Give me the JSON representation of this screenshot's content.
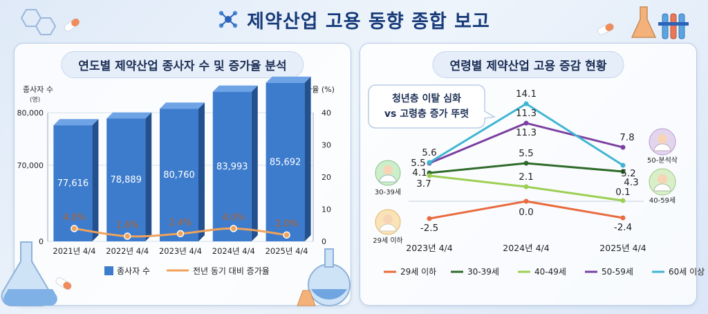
{
  "title": "제약산업 고용 동향 종합 보고",
  "left": {
    "panel_title": "연도별 제약산업 종사자 수 및 증가율 분석",
    "y_left_label": "종사자 수",
    "y_left_unit": "(명)",
    "y_right_label": "증가율 (%)",
    "legend_bar": "종사자 수",
    "legend_line": "전년 동기 대비 증가율"
  },
  "right": {
    "panel_title": "연령별 제약산업 고용 증감 현황",
    "callout_line1": "청년층 이탈 심화",
    "callout_line2": "vs 고령층 증가 뚜렷",
    "badges": [
      "30-39세",
      "29세 이하",
      "50-분석삭",
      "40-59세"
    ]
  },
  "chart_data": [
    {
      "type": "bar",
      "title": "연도별 제약산업 종사자 수 및 증가율 분석",
      "categories": [
        "2021년 4/4",
        "2022년 4/4",
        "2023년 4/4",
        "2024년 4/4",
        "2025년 4/4"
      ],
      "series": [
        {
          "name": "종사자 수",
          "type": "bar",
          "axis": "left",
          "values": [
            77616,
            78889,
            80760,
            83993,
            85692
          ],
          "labels": [
            "77,616",
            "78,889",
            "80,760",
            "83,993",
            "85,692"
          ],
          "color": "#3d7ccc"
        },
        {
          "name": "전년 동기 대비 증가율",
          "type": "line",
          "axis": "right",
          "values": [
            4.0,
            1.6,
            2.4,
            4.0,
            2.0
          ],
          "labels": [
            "4.0%",
            "1.6%",
            "2.4%",
            "4.0%",
            "2.0%"
          ],
          "color": "#f0a25a"
        }
      ],
      "y_left_ticks": [
        "0",
        "70,000",
        "80,000"
      ],
      "y_right_ticks": [
        "0",
        "10",
        "20",
        "30",
        "40"
      ],
      "y_right_lim": [
        0,
        40
      ]
    },
    {
      "type": "line",
      "title": "연령별 제약산업 고용 증감 현황",
      "x": [
        "2023년 4/4",
        "2024년 4/4",
        "2025년 4/4"
      ],
      "ylim": [
        -4,
        15
      ],
      "series": [
        {
          "name": "29세 이하",
          "values": [
            -2.5,
            0.0,
            -2.4
          ],
          "labels": [
            "-2.5",
            "0.0",
            "-2.4"
          ],
          "color": "#e86a3e"
        },
        {
          "name": "30-39세",
          "values": [
            4.1,
            5.5,
            4.3
          ],
          "labels": [
            "4.1",
            "5.5",
            "4.3"
          ],
          "color": "#2f6b2a"
        },
        {
          "name": "40-49세",
          "values": [
            3.7,
            2.1,
            0.1
          ],
          "labels": [
            "3.7",
            "2.1",
            "0.1"
          ],
          "color": "#9ccf53"
        },
        {
          "name": "50-59세",
          "values": [
            5.5,
            11.3,
            7.8
          ],
          "labels": [
            "5.5",
            "11.3",
            "7.8"
          ],
          "color": "#7b3fa0"
        },
        {
          "name": "60세 이상",
          "values": [
            5.6,
            14.1,
            5.2
          ],
          "labels": [
            "5.6",
            "14.1",
            "5.2"
          ],
          "color": "#3fb5d2"
        }
      ],
      "extra_labels": [
        "11.3"
      ]
    }
  ]
}
